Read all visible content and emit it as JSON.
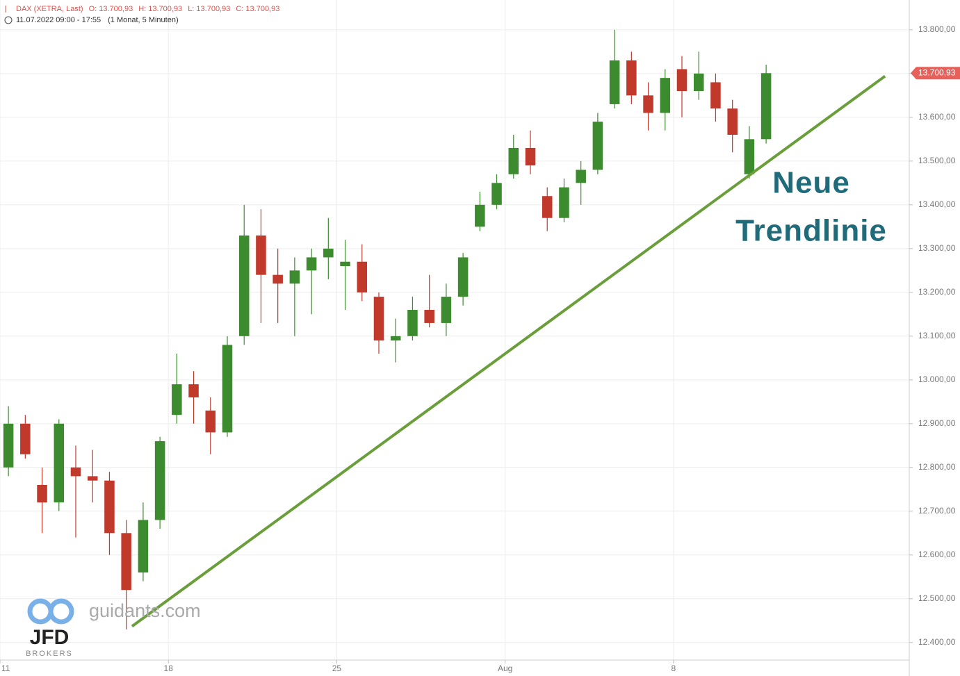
{
  "chart_data": {
    "type": "candlestick",
    "header": {
      "instrument": "DAX (XETRA, Last)",
      "ohlc": [
        "O: 13.700,93",
        "H: 13.700,93",
        "L: 13.700,93",
        "C: 13.700,93"
      ],
      "range": "11.07.2022 09:00 - 17:55",
      "interval": "(1 Monat, 5 Minuten)"
    },
    "watermark": {
      "site": "guidants.com",
      "brand": "JFD",
      "sub": "BROKERS"
    },
    "annotation": [
      "Neue",
      "Trendlinie"
    ],
    "up_color": "#3d8b2f",
    "down_color": "#c0392b",
    "grid": true,
    "xlim": [
      0,
      27
    ],
    "ylim": [
      12360,
      13868
    ],
    "xticks": [
      {
        "value": 0,
        "label": "11"
      },
      {
        "value": 5,
        "label": "18"
      },
      {
        "value": 10,
        "label": "25"
      },
      {
        "value": 15,
        "label": "Aug"
      },
      {
        "value": 20,
        "label": "8"
      }
    ],
    "yticks": [
      {
        "value": 12400,
        "label": "12.400,00"
      },
      {
        "value": 12500,
        "label": "12.500,00"
      },
      {
        "value": 12600,
        "label": "12.600,00"
      },
      {
        "value": 12700,
        "label": "12.700,00"
      },
      {
        "value": 12800,
        "label": "12.800,00"
      },
      {
        "value": 12900,
        "label": "12.900,00"
      },
      {
        "value": 13000,
        "label": "13.000,00"
      },
      {
        "value": 13100,
        "label": "13.100,00"
      },
      {
        "value": 13200,
        "label": "13.200,00"
      },
      {
        "value": 13300,
        "label": "13.300,00"
      },
      {
        "value": 13400,
        "label": "13.400,00"
      },
      {
        "value": 13500,
        "label": "13.500,00"
      },
      {
        "value": 13600,
        "label": "13.600,00"
      },
      {
        "value": 13700,
        "label": "13.700,00"
      },
      {
        "value": 13800,
        "label": "13.800,00"
      }
    ],
    "last_price": {
      "value": 13700.93,
      "label": "13.700,93",
      "color": "#e8605a"
    },
    "trendline": {
      "x": [
        3.92,
        26.28
      ],
      "values": [
        12437,
        13694
      ],
      "color": "#6a9e3a"
    },
    "x": [
      0.25,
      0.75,
      1.25,
      1.75,
      2.25,
      2.75,
      3.25,
      3.75,
      4.25,
      4.75,
      5.25,
      5.75,
      6.25,
      6.75,
      7.25,
      7.75,
      8.25,
      8.75,
      9.25,
      9.75,
      10.25,
      10.75,
      11.25,
      11.75,
      12.25,
      12.75,
      13.25,
      13.75,
      14.25,
      14.75,
      15.25,
      15.75,
      16.25,
      16.75,
      17.25,
      17.75,
      18.25,
      18.75,
      19.25,
      19.75,
      20.25,
      20.75,
      21.25,
      21.75,
      22.25,
      22.75
    ],
    "open": [
      12800,
      12900,
      12760,
      12720,
      12800,
      12780,
      12770,
      12650,
      12560,
      12680,
      12920,
      12990,
      12930,
      12880,
      13100,
      13330,
      13240,
      13220,
      13250,
      13280,
      13260,
      13270,
      13190,
      13090,
      13100,
      13160,
      13130,
      13190,
      13350,
      13400,
      13470,
      13530,
      13420,
      13370,
      13450,
      13480,
      13630,
      13730,
      13650,
      13610,
      13710,
      13660,
      13680,
      13620,
      13470,
      13550
    ],
    "high": [
      12940,
      12920,
      12800,
      12910,
      12850,
      12840,
      12790,
      12680,
      12720,
      12870,
      13060,
      13020,
      12960,
      13100,
      13400,
      13390,
      13300,
      13280,
      13300,
      13370,
      13320,
      13310,
      13200,
      13140,
      13190,
      13240,
      13220,
      13290,
      13430,
      13470,
      13560,
      13570,
      13440,
      13460,
      13500,
      13610,
      13800,
      13750,
      13680,
      13710,
      13740,
      13750,
      13700,
      13640,
      13580,
      13720
    ],
    "low": [
      12780,
      12820,
      12650,
      12700,
      12640,
      12720,
      12600,
      12430,
      12540,
      12660,
      12900,
      12900,
      12830,
      12870,
      13080,
      13130,
      13130,
      13100,
      13150,
      13230,
      13160,
      13180,
      13060,
      13040,
      13090,
      13120,
      13100,
      13170,
      13340,
      13390,
      13460,
      13470,
      13340,
      13360,
      13400,
      13470,
      13620,
      13630,
      13570,
      13570,
      13600,
      13640,
      13590,
      13520,
      13460,
      13540
    ],
    "close": [
      12900,
      12830,
      12720,
      12900,
      12780,
      12770,
      12650,
      12520,
      12680,
      12860,
      12990,
      12960,
      12880,
      13080,
      13330,
      13240,
      13220,
      13250,
      13280,
      13300,
      13270,
      13200,
      13090,
      13100,
      13160,
      13130,
      13190,
      13280,
      13400,
      13450,
      13530,
      13490,
      13370,
      13440,
      13480,
      13590,
      13730,
      13650,
      13610,
      13690,
      13660,
      13700,
      13620,
      13560,
      13550,
      13700.93
    ]
  }
}
